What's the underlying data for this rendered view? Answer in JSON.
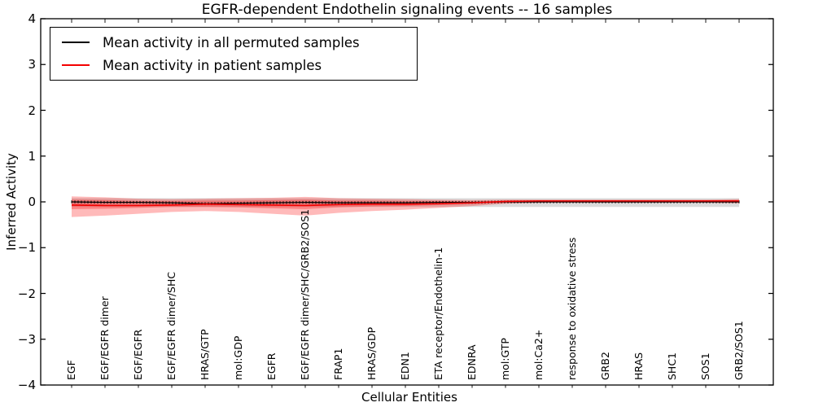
{
  "chart_data": {
    "type": "line",
    "title": "EGFR-dependent Endothelin signaling events -- 16 samples",
    "xlabel": "Cellular Entities",
    "ylabel": "Inferred Activity",
    "ylim": [
      -4,
      4
    ],
    "ytick_labels": [
      "4",
      "3",
      "2",
      "1",
      "0",
      "−1",
      "−2",
      "−3",
      "−4"
    ],
    "grid": false,
    "legend_position": "upper left",
    "categories": [
      "EGF",
      "EGF/EGFR dimer",
      "EGF/EGFR",
      "EGF/EGFR dimer/SHC",
      "HRAS/GTP",
      "mol:GDP",
      "EGFR",
      "EGF/EGFR dimer/SHC/GRB2/SOS1",
      "FRAP1",
      "HRAS/GDP",
      "EDN1",
      "ETA receptor/Endothelin-1",
      "EDNRA",
      "mol:GTP",
      "mol:Ca2+",
      "response to oxidative stress",
      "GRB2",
      "HRAS",
      "SHC1",
      "SOS1",
      "GRB2/SOS1"
    ],
    "series": [
      {
        "name": "Mean activity in all permuted samples",
        "color": "#000000",
        "marker": "vertical-dash",
        "values": [
          0,
          -0.01,
          -0.01,
          -0.02,
          -0.04,
          -0.03,
          -0.02,
          -0.01,
          -0.02,
          -0.02,
          -0.02,
          -0.01,
          -0.01,
          0,
          0,
          0,
          0,
          0,
          0,
          0,
          0
        ],
        "band": {
          "color": "rgba(0,0,0,0.14)",
          "upper": [
            0.08,
            0.08,
            0.08,
            0.08,
            0.08,
            0.08,
            0.08,
            0.08,
            0.08,
            0.08,
            0.08,
            0.08,
            0.08,
            0.08,
            0.08,
            0.08,
            0.08,
            0.08,
            0.08,
            0.08,
            0.08
          ],
          "lower": [
            -0.11,
            -0.11,
            -0.11,
            -0.11,
            -0.11,
            -0.11,
            -0.11,
            -0.11,
            -0.11,
            -0.11,
            -0.11,
            -0.11,
            -0.11,
            -0.11,
            -0.11,
            -0.11,
            -0.11,
            -0.11,
            -0.11,
            -0.11,
            -0.11
          ]
        }
      },
      {
        "name": "Mean activity in patient samples",
        "color": "#f40000",
        "marker": "none",
        "values": [
          -0.07,
          -0.08,
          -0.08,
          -0.07,
          -0.05,
          -0.06,
          -0.07,
          -0.08,
          -0.06,
          -0.05,
          -0.05,
          -0.04,
          -0.02,
          0.01,
          0.02,
          0.02,
          0.02,
          0.02,
          0.02,
          0.02,
          0.02
        ],
        "band_outer": {
          "color": "rgba(255,0,0,0.27)",
          "upper": [
            0.12,
            0.1,
            0.07,
            0.06,
            0.07,
            0.08,
            0.09,
            0.11,
            0.08,
            0.07,
            0.06,
            0.05,
            0.04,
            0.05,
            0.05,
            0.05,
            0.05,
            0.05,
            0.05,
            0.05,
            0.06
          ],
          "lower": [
            -0.33,
            -0.3,
            -0.26,
            -0.22,
            -0.2,
            -0.22,
            -0.26,
            -0.3,
            -0.24,
            -0.2,
            -0.17,
            -0.13,
            -0.09,
            -0.04,
            -0.02,
            -0.02,
            -0.02,
            -0.02,
            -0.02,
            -0.02,
            -0.03
          ]
        },
        "band_inner": {
          "color": "rgba(255,0,0,0.27)",
          "upper": [
            0.05,
            0.04,
            0.02,
            0.02,
            0.03,
            0.03,
            0.04,
            0.05,
            0.03,
            0.03,
            0.02,
            0.02,
            0.01,
            0.02,
            0.03,
            0.03,
            0.03,
            0.03,
            0.03,
            0.03,
            0.04
          ],
          "lower": [
            -0.16,
            -0.15,
            -0.13,
            -0.11,
            -0.11,
            -0.12,
            -0.14,
            -0.16,
            -0.12,
            -0.1,
            -0.09,
            -0.07,
            -0.05,
            -0.02,
            -0.01,
            -0.01,
            -0.01,
            -0.01,
            -0.01,
            -0.01,
            -0.02
          ]
        }
      }
    ]
  }
}
